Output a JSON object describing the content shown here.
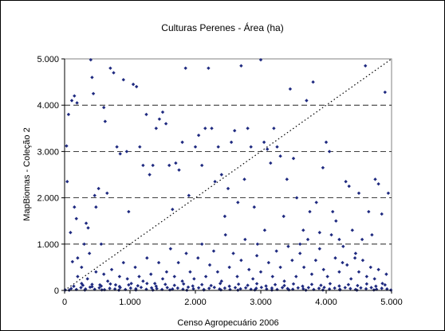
{
  "chart_data": {
    "type": "scatter",
    "title": "Culturas Perenes - Área (ha)",
    "xlabel": "Censo Agropecuário 2006",
    "ylabel": "MapBiomas - Coleção 2",
    "xlim": [
      0,
      5000
    ],
    "ylim": [
      0,
      5000
    ],
    "xticks": [
      "0",
      "1.000",
      "2.000",
      "3.000",
      "4.000",
      "5.000"
    ],
    "yticks": [
      "0",
      "1.000",
      "2.000",
      "3.000",
      "4.000",
      "5.000"
    ],
    "grid": "horizontal dashed",
    "reference_line": "dotted 1:1 line",
    "marker_color": "#1f2a80",
    "points": [
      [
        30,
        3120
      ],
      [
        60,
        3800
      ],
      [
        110,
        4100
      ],
      [
        150,
        4200
      ],
      [
        190,
        4050
      ],
      [
        40,
        2350
      ],
      [
        90,
        1250
      ],
      [
        150,
        1800
      ],
      [
        180,
        1550
      ],
      [
        120,
        620
      ],
      [
        200,
        700
      ],
      [
        260,
        500
      ],
      [
        300,
        1000
      ],
      [
        330,
        1450
      ],
      [
        360,
        1350
      ],
      [
        380,
        800
      ],
      [
        400,
        4980
      ],
      [
        420,
        4600
      ],
      [
        440,
        4250
      ],
      [
        460,
        2050
      ],
      [
        480,
        1800
      ],
      [
        520,
        2200
      ],
      [
        560,
        1000
      ],
      [
        600,
        3950
      ],
      [
        620,
        3650
      ],
      [
        650,
        2100
      ],
      [
        700,
        4800
      ],
      [
        750,
        4700
      ],
      [
        800,
        3100
      ],
      [
        850,
        2950
      ],
      [
        900,
        4550
      ],
      [
        950,
        3000
      ],
      [
        980,
        1700
      ],
      [
        1050,
        4450
      ],
      [
        1100,
        4400
      ],
      [
        1150,
        3100
      ],
      [
        1200,
        2700
      ],
      [
        1250,
        3800
      ],
      [
        1300,
        2500
      ],
      [
        1350,
        2700
      ],
      [
        1400,
        3500
      ],
      [
        1450,
        3700
      ],
      [
        1500,
        3850
      ],
      [
        1550,
        3600
      ],
      [
        1600,
        2700
      ],
      [
        1650,
        1750
      ],
      [
        1700,
        2750
      ],
      [
        1750,
        2600
      ],
      [
        1800,
        3200
      ],
      [
        1850,
        4800
      ],
      [
        1900,
        2050
      ],
      [
        2000,
        3100
      ],
      [
        2050,
        3350
      ],
      [
        2100,
        2700
      ],
      [
        2150,
        3500
      ],
      [
        2200,
        4800
      ],
      [
        2250,
        3500
      ],
      [
        2300,
        2350
      ],
      [
        2350,
        3100
      ],
      [
        2400,
        2500
      ],
      [
        2450,
        1600
      ],
      [
        2500,
        2200
      ],
      [
        2550,
        3200
      ],
      [
        2600,
        3450
      ],
      [
        2650,
        1900
      ],
      [
        2700,
        4850
      ],
      [
        2750,
        2400
      ],
      [
        2800,
        3500
      ],
      [
        2850,
        3100
      ],
      [
        2900,
        1800
      ],
      [
        2950,
        1000
      ],
      [
        3000,
        4980
      ],
      [
        3050,
        3200
      ],
      [
        3100,
        3050
      ],
      [
        3150,
        2750
      ],
      [
        3200,
        3500
      ],
      [
        3250,
        3100
      ],
      [
        3300,
        2900
      ],
      [
        3350,
        1600
      ],
      [
        3400,
        2400
      ],
      [
        3450,
        4350
      ],
      [
        3500,
        2850
      ],
      [
        3550,
        2000
      ],
      [
        3600,
        1000
      ],
      [
        3650,
        1300
      ],
      [
        3700,
        4100
      ],
      [
        3750,
        1700
      ],
      [
        3800,
        4500
      ],
      [
        3850,
        1900
      ],
      [
        3900,
        1250
      ],
      [
        3950,
        2650
      ],
      [
        4000,
        3200
      ],
      [
        4050,
        3000
      ],
      [
        4100,
        1700
      ],
      [
        4150,
        1500
      ],
      [
        4200,
        1100
      ],
      [
        4250,
        600
      ],
      [
        4300,
        2350
      ],
      [
        4350,
        2250
      ],
      [
        4400,
        1300
      ],
      [
        4450,
        800
      ],
      [
        4500,
        2100
      ],
      [
        4550,
        1100
      ],
      [
        4600,
        4850
      ],
      [
        4650,
        1700
      ],
      [
        4700,
        1200
      ],
      [
        4750,
        2400
      ],
      [
        4800,
        2300
      ],
      [
        4850,
        1650
      ],
      [
        4900,
        4280
      ],
      [
        4950,
        2100
      ],
      [
        200,
        300
      ],
      [
        260,
        150
      ],
      [
        350,
        250
      ],
      [
        420,
        80
      ],
      [
        480,
        400
      ],
      [
        540,
        120
      ],
      [
        600,
        350
      ],
      [
        660,
        200
      ],
      [
        720,
        450
      ],
      [
        780,
        120
      ],
      [
        840,
        300
      ],
      [
        900,
        600
      ],
      [
        960,
        250
      ],
      [
        1020,
        150
      ],
      [
        1080,
        500
      ],
      [
        1140,
        300
      ],
      [
        1200,
        200
      ],
      [
        1260,
        700
      ],
      [
        1320,
        350
      ],
      [
        1380,
        150
      ],
      [
        1440,
        600
      ],
      [
        1500,
        250
      ],
      [
        1560,
        400
      ],
      [
        1620,
        900
      ],
      [
        1680,
        300
      ],
      [
        1740,
        600
      ],
      [
        1800,
        200
      ],
      [
        1860,
        800
      ],
      [
        1920,
        400
      ],
      [
        1980,
        250
      ],
      [
        2040,
        700
      ],
      [
        2100,
        1000
      ],
      [
        2160,
        300
      ],
      [
        2220,
        550
      ],
      [
        2280,
        850
      ],
      [
        2340,
        400
      ],
      [
        2400,
        200
      ],
      [
        2460,
        1200
      ],
      [
        2520,
        500
      ],
      [
        2580,
        800
      ],
      [
        2640,
        300
      ],
      [
        2700,
        650
      ],
      [
        2760,
        1100
      ],
      [
        2820,
        450
      ],
      [
        2880,
        250
      ],
      [
        2940,
        750
      ],
      [
        3000,
        400
      ],
      [
        3060,
        1300
      ],
      [
        3120,
        600
      ],
      [
        3180,
        300
      ],
      [
        3240,
        850
      ],
      [
        3300,
        500
      ],
      [
        3360,
        200
      ],
      [
        3420,
        950
      ],
      [
        3480,
        650
      ],
      [
        3540,
        300
      ],
      [
        3600,
        800
      ],
      [
        3660,
        500
      ],
      [
        3720,
        1100
      ],
      [
        3780,
        350
      ],
      [
        3840,
        650
      ],
      [
        3900,
        900
      ],
      [
        3960,
        450
      ],
      [
        4020,
        300
      ],
      [
        4080,
        1200
      ],
      [
        4140,
        700
      ],
      [
        4200,
        400
      ],
      [
        4260,
        950
      ],
      [
        4320,
        550
      ],
      [
        4380,
        250
      ],
      [
        4440,
        700
      ],
      [
        4500,
        400
      ],
      [
        4560,
        650
      ],
      [
        4620,
        300
      ],
      [
        4680,
        500
      ],
      [
        4740,
        250
      ],
      [
        4800,
        450
      ],
      [
        4860,
        150
      ],
      [
        4920,
        350
      ],
      [
        100,
        40
      ],
      [
        180,
        20
      ],
      [
        250,
        60
      ],
      [
        320,
        30
      ],
      [
        390,
        70
      ],
      [
        460,
        25
      ],
      [
        530,
        55
      ],
      [
        610,
        15
      ],
      [
        690,
        45
      ],
      [
        770,
        30
      ],
      [
        850,
        60
      ],
      [
        930,
        20
      ],
      [
        1010,
        50
      ],
      [
        1090,
        35
      ],
      [
        1170,
        65
      ],
      [
        1250,
        25
      ],
      [
        1330,
        55
      ],
      [
        1410,
        40
      ],
      [
        1490,
        20
      ],
      [
        1570,
        60
      ],
      [
        1650,
        30
      ],
      [
        1730,
        50
      ],
      [
        1810,
        25
      ],
      [
        1890,
        70
      ],
      [
        1970,
        35
      ],
      [
        2050,
        55
      ],
      [
        2130,
        20
      ],
      [
        2210,
        45
      ],
      [
        2290,
        65
      ],
      [
        2370,
        30
      ],
      [
        2450,
        50
      ],
      [
        2530,
        20
      ],
      [
        2610,
        60
      ],
      [
        2690,
        35
      ],
      [
        2770,
        55
      ],
      [
        2850,
        25
      ],
      [
        2930,
        45
      ],
      [
        3010,
        65
      ],
      [
        3090,
        30
      ],
      [
        3170,
        50
      ],
      [
        3250,
        20
      ],
      [
        3330,
        60
      ],
      [
        3410,
        40
      ],
      [
        3490,
        25
      ],
      [
        3570,
        55
      ],
      [
        3650,
        35
      ],
      [
        3730,
        60
      ],
      [
        3810,
        20
      ],
      [
        3890,
        45
      ],
      [
        3970,
        65
      ],
      [
        4050,
        30
      ],
      [
        4130,
        50
      ],
      [
        4210,
        25
      ],
      [
        4290,
        60
      ],
      [
        4370,
        40
      ],
      [
        4450,
        20
      ],
      [
        4530,
        55
      ],
      [
        4610,
        35
      ],
      [
        4690,
        60
      ],
      [
        4770,
        25
      ],
      [
        4850,
        45
      ],
      [
        4930,
        30
      ],
      [
        140,
        90
      ],
      [
        280,
        110
      ],
      [
        420,
        130
      ],
      [
        560,
        95
      ],
      [
        700,
        140
      ],
      [
        840,
        85
      ],
      [
        980,
        120
      ],
      [
        1120,
        100
      ],
      [
        1260,
        150
      ],
      [
        1400,
        90
      ],
      [
        1540,
        130
      ],
      [
        1680,
        110
      ],
      [
        1820,
        140
      ],
      [
        1960,
        95
      ],
      [
        2100,
        125
      ],
      [
        2240,
        105
      ],
      [
        2380,
        150
      ],
      [
        2520,
        90
      ],
      [
        2660,
        135
      ],
      [
        2800,
        110
      ],
      [
        2940,
        145
      ],
      [
        3080,
        95
      ],
      [
        3220,
        125
      ],
      [
        3360,
        105
      ],
      [
        3500,
        140
      ],
      [
        3640,
        90
      ],
      [
        3780,
        130
      ],
      [
        3920,
        110
      ],
      [
        4060,
        145
      ],
      [
        4200,
        95
      ],
      [
        4340,
        125
      ],
      [
        4480,
        105
      ],
      [
        4620,
        140
      ],
      [
        4760,
        90
      ],
      [
        4900,
        120
      ],
      [
        10,
        10
      ],
      [
        70,
        5
      ],
      [
        310,
        8
      ],
      [
        570,
        12
      ],
      [
        830,
        6
      ],
      [
        1090,
        10
      ],
      [
        1350,
        7
      ],
      [
        1610,
        12
      ],
      [
        1870,
        5
      ],
      [
        2130,
        9
      ],
      [
        2390,
        11
      ],
      [
        2650,
        6
      ],
      [
        2910,
        10
      ],
      [
        3170,
        8
      ],
      [
        3430,
        12
      ],
      [
        3690,
        5
      ],
      [
        3950,
        9
      ],
      [
        4210,
        11
      ],
      [
        4470,
        6
      ],
      [
        4730,
        10
      ],
      [
        4990,
        8
      ]
    ]
  }
}
